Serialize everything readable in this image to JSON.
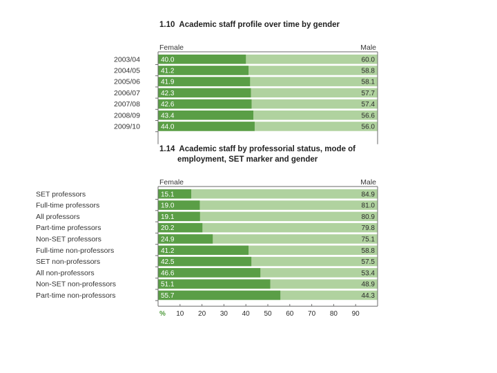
{
  "colors": {
    "female": "#5a9e46",
    "male": "#b0d29f",
    "frame": "#6a6a6a",
    "pct_label": "#4e9a3c"
  },
  "chart_data": [
    {
      "type": "bar",
      "stacked": true,
      "orientation": "horizontal",
      "title_number": "1.10",
      "title": "Academic staff profile over time by gender",
      "left_header": "Female",
      "right_header": "Male",
      "categories": [
        "2003/04",
        "2004/05",
        "2005/06",
        "2006/07",
        "2007/08",
        "2008/09",
        "2009/10"
      ],
      "series": [
        {
          "name": "Female",
          "values": [
            40.0,
            41.2,
            41.9,
            42.3,
            42.6,
            43.4,
            44.0
          ]
        },
        {
          "name": "Male",
          "values": [
            60.0,
            58.8,
            58.1,
            57.7,
            57.4,
            56.6,
            56.0
          ]
        }
      ],
      "xlim": [
        0,
        100
      ]
    },
    {
      "type": "bar",
      "stacked": true,
      "orientation": "horizontal",
      "title_number": "1.14",
      "title_lines": [
        "Academic staff by professorial status, mode of",
        "employment, SET marker and gender"
      ],
      "left_header": "Female",
      "right_header": "Male",
      "categories": [
        "SET professors",
        "Full-time professors",
        "All professors",
        "Part-time professors",
        "Non-SET professors",
        "Full-time non-professors",
        "SET non-professors",
        "All non-professors",
        "Non-SET non-professors",
        "Part-time non-professors"
      ],
      "series": [
        {
          "name": "Female",
          "values": [
            15.1,
            19.0,
            19.1,
            20.2,
            24.9,
            41.2,
            42.5,
            46.6,
            51.1,
            55.7
          ]
        },
        {
          "name": "Male",
          "values": [
            84.9,
            81.0,
            80.9,
            79.8,
            75.1,
            58.8,
            57.5,
            53.4,
            48.9,
            44.3
          ]
        }
      ],
      "xlim": [
        0,
        100
      ],
      "x_axis_unit": "%",
      "x_ticks": [
        10,
        20,
        30,
        40,
        50,
        60,
        70,
        80,
        90
      ]
    }
  ]
}
